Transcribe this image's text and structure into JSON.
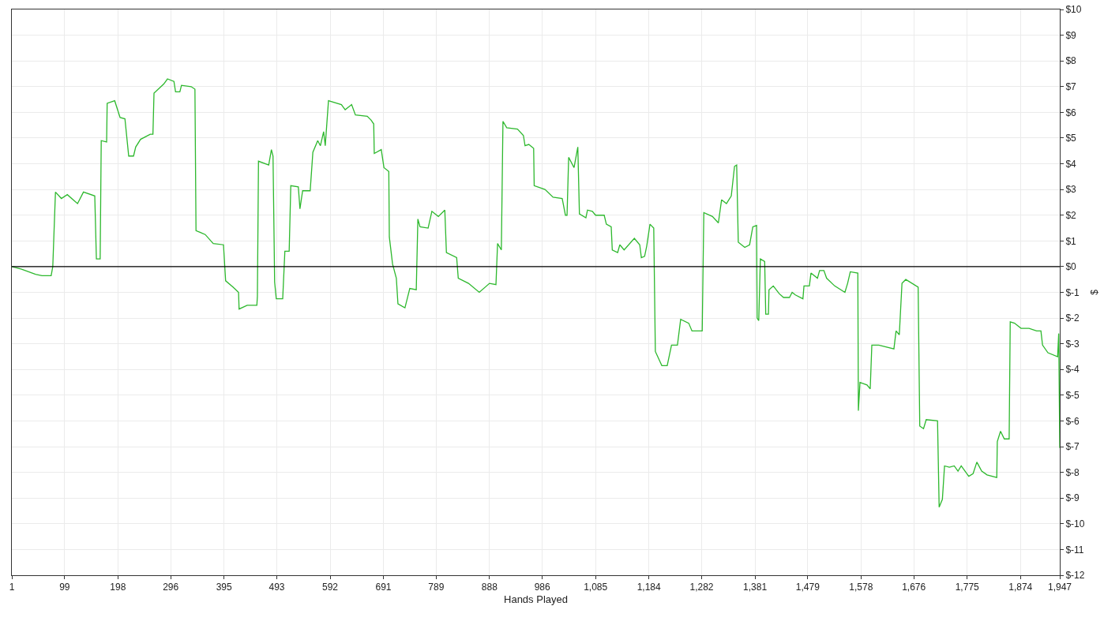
{
  "chart_data": {
    "type": "line",
    "xlabel": "Hands Played",
    "ylabel": "$",
    "x": [
      1,
      19,
      45,
      57,
      74,
      77,
      82,
      93,
      104,
      123,
      134,
      155,
      158,
      165,
      167,
      177,
      178,
      192,
      202,
      211,
      218,
      227,
      231,
      240,
      258,
      263,
      265,
      283,
      290,
      302,
      305,
      313,
      316,
      334,
      341,
      343,
      360,
      375,
      394,
      398,
      412,
      422,
      423,
      438,
      456,
      457,
      459,
      478,
      483,
      486,
      489,
      492,
      504,
      508,
      516,
      519,
      533,
      536,
      541,
      555,
      560,
      569,
      574,
      580,
      583,
      589,
      613,
      620,
      632,
      639,
      661,
      668,
      673,
      674,
      687,
      692,
      701,
      702,
      708,
      715,
      718,
      731,
      740,
      752,
      755,
      759,
      774,
      781,
      793,
      805,
      808,
      827,
      830,
      849,
      869,
      888,
      900,
      903,
      910,
      913,
      920,
      940,
      951,
      954,
      961,
      970,
      971,
      991,
      1006,
      1023,
      1029,
      1032,
      1035,
      1045,
      1052,
      1055,
      1067,
      1070,
      1079,
      1085,
      1101,
      1105,
      1114,
      1116,
      1126,
      1130,
      1138,
      1157,
      1167,
      1170,
      1176,
      1180,
      1186,
      1193,
      1196,
      1208,
      1218,
      1226,
      1237,
      1243,
      1258,
      1264,
      1283,
      1286,
      1302,
      1313,
      1319,
      1328,
      1337,
      1343,
      1347,
      1350,
      1362,
      1371,
      1377,
      1384,
      1385,
      1388,
      1391,
      1399,
      1401,
      1406,
      1407,
      1415,
      1426,
      1434,
      1445,
      1450,
      1456,
      1470,
      1472,
      1482,
      1485,
      1497,
      1501,
      1509,
      1514,
      1529,
      1548,
      1553,
      1558,
      1572,
      1573,
      1576,
      1589,
      1595,
      1598,
      1611,
      1639,
      1643,
      1649,
      1654,
      1661,
      1684,
      1687,
      1694,
      1699,
      1720,
      1723,
      1729,
      1733,
      1742,
      1751,
      1758,
      1764,
      1778,
      1786,
      1793,
      1802,
      1812,
      1830,
      1831,
      1837,
      1844,
      1853,
      1855,
      1863,
      1875,
      1890,
      1904,
      1912,
      1915,
      1925,
      1943,
      1945,
      1947
    ],
    "series": [
      {
        "color": "#2db82d",
        "values": [
          0,
          -0.1,
          -0.3,
          -0.35,
          -0.35,
          0,
          2.9,
          2.65,
          2.8,
          2.45,
          2.9,
          2.75,
          0.3,
          0.3,
          4.9,
          4.85,
          6.35,
          6.45,
          5.8,
          5.75,
          4.3,
          4.3,
          4.65,
          4.95,
          5.15,
          5.15,
          6.75,
          7.1,
          7.3,
          7.2,
          6.8,
          6.8,
          7.05,
          7.0,
          6.9,
          1.4,
          1.25,
          0.9,
          0.85,
          -0.55,
          -0.8,
          -1.0,
          -1.65,
          -1.5,
          -1.5,
          -1.15,
          4.1,
          3.95,
          4.55,
          4.3,
          -0.6,
          -1.25,
          -1.25,
          0.6,
          0.6,
          3.15,
          3.1,
          2.25,
          2.95,
          2.95,
          4.45,
          4.9,
          4.7,
          5.25,
          4.7,
          6.45,
          6.3,
          6.1,
          6.3,
          5.9,
          5.85,
          5.7,
          5.55,
          4.4,
          4.55,
          3.85,
          3.7,
          1.15,
          0.1,
          -0.45,
          -1.45,
          -1.6,
          -0.85,
          -0.9,
          1.85,
          1.55,
          1.5,
          2.15,
          1.95,
          2.2,
          0.55,
          0.35,
          -0.45,
          -0.65,
          -1.0,
          -0.65,
          -0.7,
          0.9,
          0.65,
          5.65,
          5.4,
          5.35,
          5.1,
          4.7,
          4.75,
          4.6,
          3.15,
          3.0,
          2.7,
          2.65,
          2.0,
          2.0,
          4.25,
          3.85,
          4.65,
          2.05,
          1.9,
          2.2,
          2.15,
          2.0,
          2.0,
          1.65,
          1.55,
          0.65,
          0.55,
          0.85,
          0.65,
          1.1,
          0.85,
          0.35,
          0.4,
          0.8,
          1.65,
          1.5,
          -3.3,
          -3.85,
          -3.85,
          -3.05,
          -3.05,
          -2.05,
          -2.2,
          -2.5,
          -2.5,
          2.1,
          1.95,
          1.7,
          2.6,
          2.45,
          2.75,
          3.9,
          3.95,
          0.95,
          0.75,
          0.85,
          1.55,
          1.6,
          -2.0,
          -2.1,
          0.3,
          0.2,
          -1.85,
          -1.85,
          -0.9,
          -0.75,
          -1.05,
          -1.2,
          -1.2,
          -1.0,
          -1.1,
          -1.25,
          -0.75,
          -0.75,
          -0.25,
          -0.45,
          -0.15,
          -0.15,
          -0.45,
          -0.75,
          -1.0,
          -0.65,
          -0.2,
          -0.25,
          -5.6,
          -4.5,
          -4.6,
          -4.75,
          -3.05,
          -3.05,
          -3.2,
          -2.5,
          -2.65,
          -0.65,
          -0.5,
          -0.8,
          -6.2,
          -6.3,
          -5.95,
          -6.0,
          -9.35,
          -9.05,
          -7.75,
          -7.8,
          -7.75,
          -7.95,
          -7.75,
          -8.15,
          -8.05,
          -7.6,
          -7.95,
          -8.1,
          -8.2,
          -6.8,
          -6.4,
          -6.7,
          -6.7,
          -2.15,
          -2.2,
          -2.4,
          -2.4,
          -2.5,
          -2.5,
          -3.05,
          -3.35,
          -3.5,
          -2.6,
          -7.05
        ]
      }
    ],
    "xlim": [
      1,
      1947
    ],
    "ylim": [
      -12,
      10
    ],
    "xticks": [
      1,
      99,
      198,
      296,
      395,
      493,
      592,
      691,
      789,
      888,
      986,
      {
        "value": 1085,
        "label": "1,085"
      },
      {
        "value": 1184,
        "label": "1,184"
      },
      {
        "value": 1282,
        "label": "1,282"
      },
      {
        "value": 1381,
        "label": "1,381"
      },
      {
        "value": 1479,
        "label": "1,479"
      },
      {
        "value": 1578,
        "label": "1,578"
      },
      {
        "value": 1676,
        "label": "1,676"
      },
      {
        "value": 1775,
        "label": "1,775"
      },
      {
        "value": 1874,
        "label": "1,874"
      },
      {
        "value": 1947,
        "label": "1,947"
      }
    ],
    "yticks": [
      {
        "value": 10,
        "label": "$10"
      },
      {
        "value": 9,
        "label": "$9"
      },
      {
        "value": 8,
        "label": "$8"
      },
      {
        "value": 7,
        "label": "$7"
      },
      {
        "value": 6,
        "label": "$6"
      },
      {
        "value": 5,
        "label": "$5"
      },
      {
        "value": 4,
        "label": "$4"
      },
      {
        "value": 3,
        "label": "$3"
      },
      {
        "value": 2,
        "label": "$2"
      },
      {
        "value": 1,
        "label": "$1"
      },
      {
        "value": 0,
        "label": "$0"
      },
      {
        "value": -1,
        "label": "$-1"
      },
      {
        "value": -2,
        "label": "$-2"
      },
      {
        "value": -3,
        "label": "$-3"
      },
      {
        "value": -4,
        "label": "$-4"
      },
      {
        "value": -5,
        "label": "$-5"
      },
      {
        "value": -6,
        "label": "$-6"
      },
      {
        "value": -7,
        "label": "$-7"
      },
      {
        "value": -8,
        "label": "$-8"
      },
      {
        "value": -9,
        "label": "$-9"
      },
      {
        "value": -10,
        "label": "$-10"
      },
      {
        "value": -11,
        "label": "$-11"
      },
      {
        "value": -12,
        "label": "$-12"
      }
    ],
    "grid": true,
    "marker": "none",
    "line_style": "solid",
    "ref_lines": [
      {
        "axis": "y",
        "value": 0,
        "color": "#000000"
      }
    ]
  }
}
